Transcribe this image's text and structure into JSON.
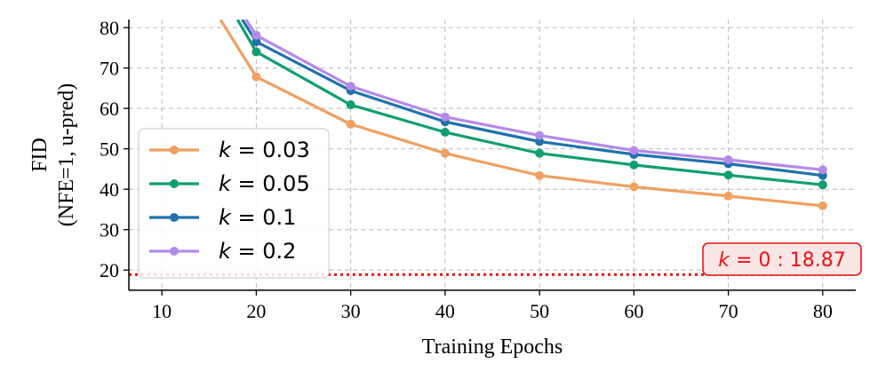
{
  "chart_data": {
    "type": "line",
    "title": "",
    "xlabel": "Training Epochs",
    "ylabel_lines": [
      "FID",
      "(NFE=1, u-pred)"
    ],
    "xlim": [
      6.5,
      83.5
    ],
    "ylim": [
      15,
      82
    ],
    "xticks": [
      10,
      20,
      30,
      40,
      50,
      60,
      70,
      80
    ],
    "yticks": [
      20,
      30,
      40,
      50,
      60,
      70,
      80
    ],
    "grid": true,
    "legend_position": "center-left",
    "x": [
      10,
      20,
      30,
      40,
      50,
      60,
      70,
      80
    ],
    "series": [
      {
        "name": "k = 0.03",
        "k_value": "0.03",
        "color": "#f0a060",
        "values": [
          null,
          67.8,
          56.1,
          48.9,
          43.4,
          40.6,
          38.3,
          35.9
        ],
        "entry_from": [
          16.2,
          82
        ]
      },
      {
        "name": "k = 0.05",
        "k_value": "0.05",
        "color": "#109e72",
        "values": [
          null,
          74.0,
          60.9,
          54.1,
          48.9,
          46.0,
          43.5,
          41.1
        ],
        "entry_from": [
          18.0,
          82
        ]
      },
      {
        "name": "k = 0.1",
        "k_value": "0.1",
        "color": "#1f72aa",
        "values": [
          null,
          76.5,
          64.4,
          56.7,
          51.8,
          48.6,
          46.3,
          43.4
        ],
        "entry_from": [
          18.5,
          82
        ]
      },
      {
        "name": "k = 0.2",
        "k_value": "0.2",
        "color": "#b38ae8",
        "values": [
          null,
          78.1,
          65.5,
          57.9,
          53.3,
          49.6,
          47.3,
          44.8
        ],
        "entry_from": [
          18.9,
          82
        ]
      }
    ],
    "reference_line": {
      "label": "k = 0 : 18.87",
      "k_value": "0",
      "value": "18.87",
      "y": 18.87,
      "color": "#ee1111"
    }
  }
}
